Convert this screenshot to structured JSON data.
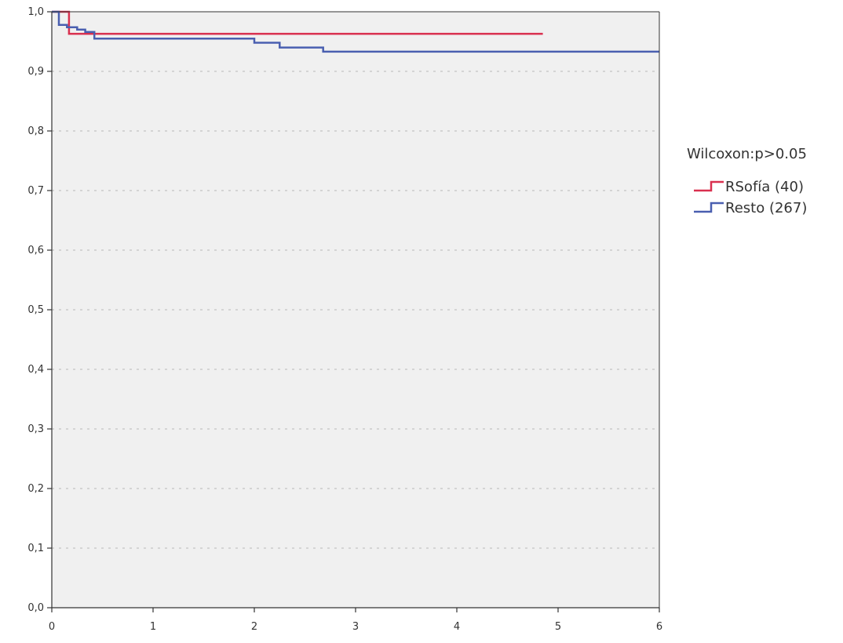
{
  "chart_data": {
    "type": "line",
    "step": true,
    "xlim": [
      0,
      6
    ],
    "ylim": [
      0,
      1
    ],
    "x_ticks": [
      0,
      1,
      2,
      3,
      4,
      5,
      6
    ],
    "x_tick_labels": [
      "0",
      "1",
      "2",
      "3",
      "4",
      "5",
      "6"
    ],
    "y_ticks": [
      0,
      0.1,
      0.2,
      0.3,
      0.4,
      0.5,
      0.6,
      0.7,
      0.8,
      0.9,
      1.0
    ],
    "y_tick_labels": [
      "0,0",
      "0,1",
      "0,2",
      "0,3",
      "0,4",
      "0,5",
      "0,6",
      "0,7",
      "0,8",
      "0,9",
      "1,0"
    ],
    "gridlines": "horizontal dashed",
    "legend_position": "right",
    "legend_title": "Wilcoxon:p>0.05",
    "colors": {
      "background": "#f0f0f0",
      "grid": "#b8b8b8",
      "axis": "#333333"
    },
    "series": [
      {
        "name": "RSofía (40)",
        "color": "#d9304f",
        "points": [
          [
            0,
            1.0
          ],
          [
            0.17,
            1.0
          ],
          [
            0.17,
            0.963
          ],
          [
            4.85,
            0.963
          ]
        ]
      },
      {
        "name": "Resto (267)",
        "color": "#4a5fb0",
        "points": [
          [
            0,
            1.0
          ],
          [
            0.07,
            1.0
          ],
          [
            0.07,
            0.978
          ],
          [
            0.15,
            0.978
          ],
          [
            0.15,
            0.974
          ],
          [
            0.25,
            0.974
          ],
          [
            0.25,
            0.97
          ],
          [
            0.33,
            0.97
          ],
          [
            0.33,
            0.966
          ],
          [
            0.42,
            0.966
          ],
          [
            0.42,
            0.955
          ],
          [
            2.0,
            0.955
          ],
          [
            2.0,
            0.948
          ],
          [
            2.25,
            0.948
          ],
          [
            2.25,
            0.94
          ],
          [
            2.68,
            0.94
          ],
          [
            2.68,
            0.933
          ],
          [
            6.0,
            0.933
          ]
        ]
      }
    ]
  }
}
